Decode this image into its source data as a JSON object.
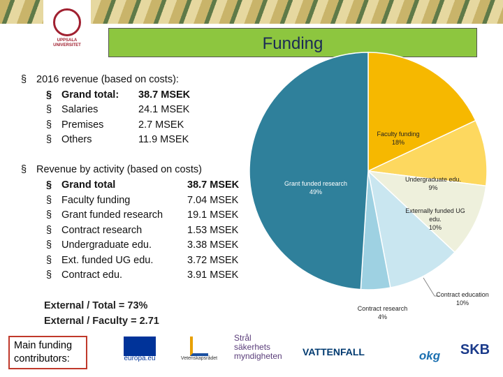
{
  "header": {
    "title": "Funding",
    "logo": "UPPSALA UNIVERSITET"
  },
  "revenue_costs": {
    "heading": "2016 revenue (based on costs):",
    "items": [
      {
        "label": "Grand total:",
        "value": "38.7 MSEK"
      },
      {
        "label": "Salaries",
        "value": "24.1 MSEK"
      },
      {
        "label": "Premises",
        "value": "2.7 MSEK"
      },
      {
        "label": "Others",
        "value": "11.9 MSEK"
      }
    ]
  },
  "revenue_activity": {
    "heading": "Revenue by activity (based on costs)",
    "items": [
      {
        "label": "Grand total",
        "value": "38.7 MSEK"
      },
      {
        "label": "Faculty funding",
        "value": "7.04 MSEK"
      },
      {
        "label": "Grant funded research",
        "value": "19.1 MSEK"
      },
      {
        "label": "Contract research",
        "value": "1.53 MSEK"
      },
      {
        "label": "Undergraduate edu.",
        "value": "3.38 MSEK"
      },
      {
        "label": "Ext. funded UG edu.",
        "value": "3.72 MSEK"
      },
      {
        "label": "Contract edu.",
        "value": "3.91 MSEK"
      }
    ]
  },
  "ratios": [
    "External / Total = 73%",
    "External / Faculty = 2.71"
  ],
  "contributors": {
    "label": "Main funding contributors:",
    "logos": [
      "europa.eu",
      "Vetenskapsrådet",
      "Strål säkerhets myndigheten",
      "VATTENFALL",
      "okg",
      "SKB"
    ]
  },
  "chart_data": {
    "type": "pie",
    "categories": [
      "Faculty funding",
      "Undergraduate edu.",
      "Externally funded UG edu.",
      "Contract education",
      "Contract research",
      "Grant funded research"
    ],
    "values": [
      18,
      9,
      10,
      10,
      4,
      49
    ],
    "value_labels": [
      "18%",
      "9%",
      "10%",
      "10%",
      "4%",
      "49%"
    ],
    "colors": [
      "#f6b800",
      "#fdd85f",
      "#eef0dc",
      "#c9e6f0",
      "#9ed1e2",
      "#2f809b"
    ]
  }
}
